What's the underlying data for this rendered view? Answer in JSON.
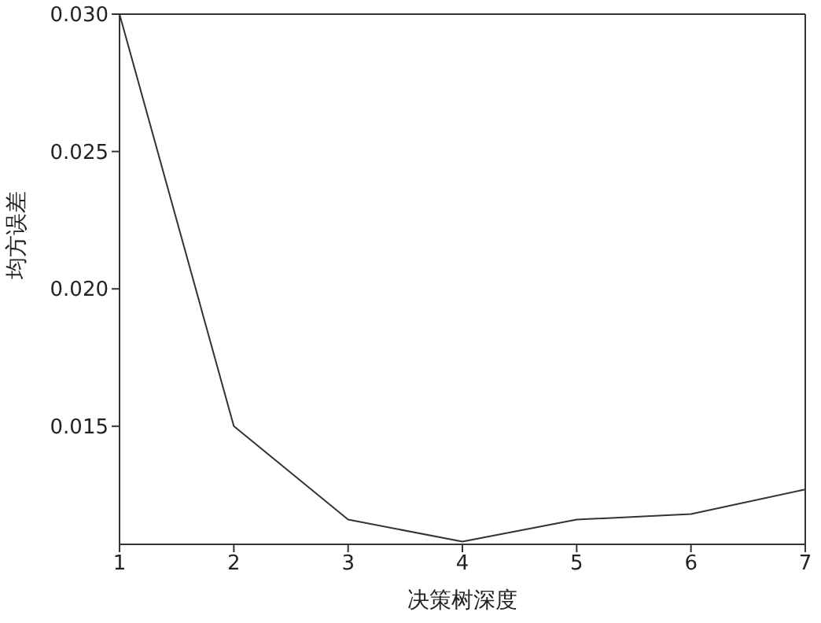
{
  "chart_data": {
    "type": "line",
    "xlabel": "决策树深度",
    "ylabel": "均方误差",
    "x": [
      1,
      2,
      3,
      4,
      5,
      6,
      7
    ],
    "series": [
      {
        "color": "#333333",
        "values": [
          0.03,
          0.015,
          0.0116,
          0.0108,
          0.0116,
          0.0118,
          0.0127
        ]
      }
    ],
    "xlim": [
      1,
      7
    ],
    "xticks": [
      1,
      2,
      3,
      4,
      5,
      6,
      7
    ],
    "ylim": [
      0.0107,
      0.03
    ],
    "yticks": [
      {
        "value": 0.015,
        "label": "0.015"
      },
      {
        "value": 0.02,
        "label": "0.020"
      },
      {
        "value": 0.025,
        "label": "0.025"
      },
      {
        "value": 0.03,
        "label": "0.030"
      }
    ],
    "grid": false,
    "legend": false,
    "marker": "none",
    "line_style": "solid"
  }
}
